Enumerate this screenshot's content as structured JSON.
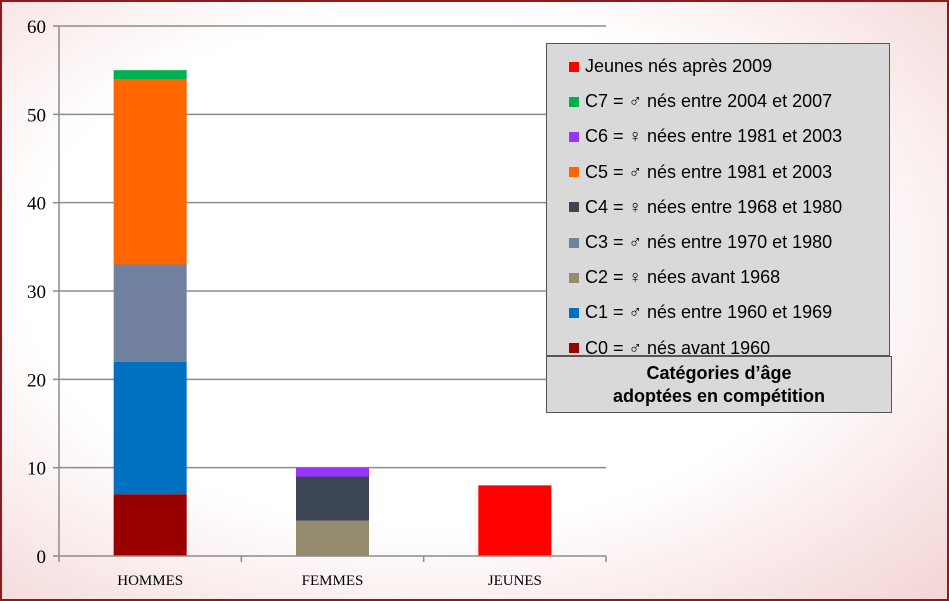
{
  "chart_data": {
    "type": "bar",
    "stacked": true,
    "categories": [
      "HOMMES",
      "FEMMES",
      "JEUNES"
    ],
    "ylim": [
      0,
      60
    ],
    "yticks": [
      0,
      10,
      20,
      30,
      40,
      50,
      60
    ],
    "grid": true,
    "legend_position": "right",
    "series": [
      {
        "name": "C0  = ♂ nés avant 1960",
        "color": "#990000",
        "values": [
          7,
          0,
          0
        ]
      },
      {
        "name": "C1 = ♂ nés entre 1960 et 1969",
        "color": "#0070c0",
        "values": [
          15,
          0,
          0
        ]
      },
      {
        "name": "C2 = ♀ nées avant 1968",
        "color": "#948a6e",
        "values": [
          0,
          4,
          0
        ]
      },
      {
        "name": "C3 = ♂ nés entre 1970 et 1980",
        "color": "#71809e",
        "values": [
          11,
          0,
          0
        ]
      },
      {
        "name": "C4 = ♀ nées entre 1968 et 1980",
        "color": "#3c4554",
        "values": [
          0,
          5,
          0
        ]
      },
      {
        "name": "C5 = ♂ nés entre 1981 et 2003",
        "color": "#ff6600",
        "values": [
          21,
          0,
          0
        ]
      },
      {
        "name": "C6 = ♀ nées entre 1981 et 2003",
        "color": "#9933ff",
        "values": [
          0,
          1,
          0
        ]
      },
      {
        "name": "C7 = ♂ nés entre 2004 et 2007",
        "color": "#00b050",
        "values": [
          1,
          0,
          0
        ]
      },
      {
        "name": "Jeunes nés après 2009",
        "color": "#ff0000",
        "values": [
          0,
          0,
          8
        ]
      }
    ]
  },
  "caption": {
    "line1": "Catégories d’âge",
    "line2": "adoptées en compétition"
  }
}
